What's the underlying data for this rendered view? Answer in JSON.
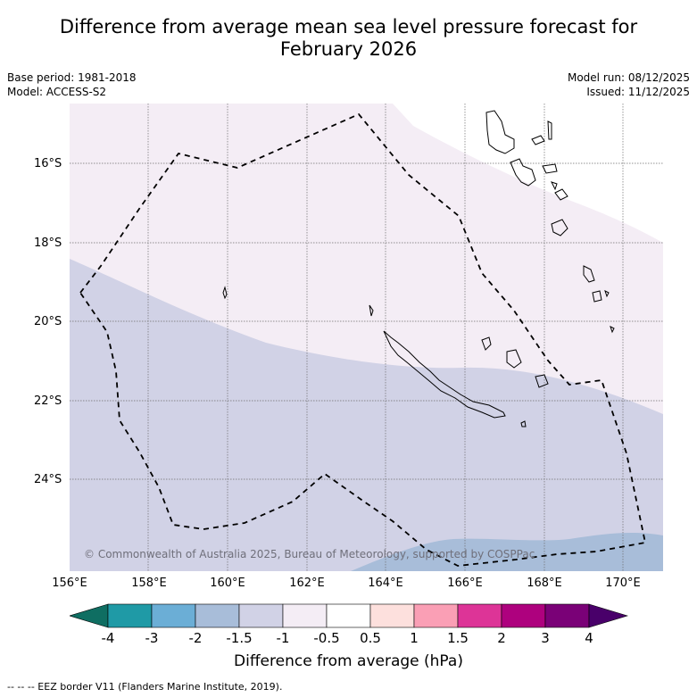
{
  "title": {
    "line1": "Difference from average mean sea level pressure forecast for",
    "line2": "February 2026"
  },
  "meta": {
    "base_period": "Base period: 1981-2018",
    "model": "Model: ACCESS-S2",
    "model_run": "Model run: 08/12/2025",
    "issued": "Issued: 11/12/2025"
  },
  "axes": {
    "lat_labels": [
      "16°S",
      "18°S",
      "20°S",
      "22°S",
      "24°S"
    ],
    "lon_labels": [
      "156°E",
      "158°E",
      "160°E",
      "162°E",
      "164°E",
      "166°E",
      "168°E",
      "170°E"
    ]
  },
  "copyright": "© Commonwealth of Australia 2025, Bureau of Meteorology, supported by COSPPac",
  "legend": {
    "title": "Difference from average (hPa)",
    "ticks": [
      "-4",
      "-3",
      "-2",
      "-1.5",
      "-1",
      "-0.5",
      "0.5",
      "1",
      "1.5",
      "2",
      "3",
      "4"
    ],
    "colors": [
      "#0f6e62",
      "#1f9aa6",
      "#6baed6",
      "#a8bdd9",
      "#d1d2e6",
      "#f4edf5",
      "#ffffff",
      "#fde0dd",
      "#fa9fb5",
      "#dd3497",
      "#ae017e",
      "#7a0177",
      "#49006a"
    ]
  },
  "footer": "--  --  -- EEZ border V11 (Flanders Marine Institute, 2019)."
}
